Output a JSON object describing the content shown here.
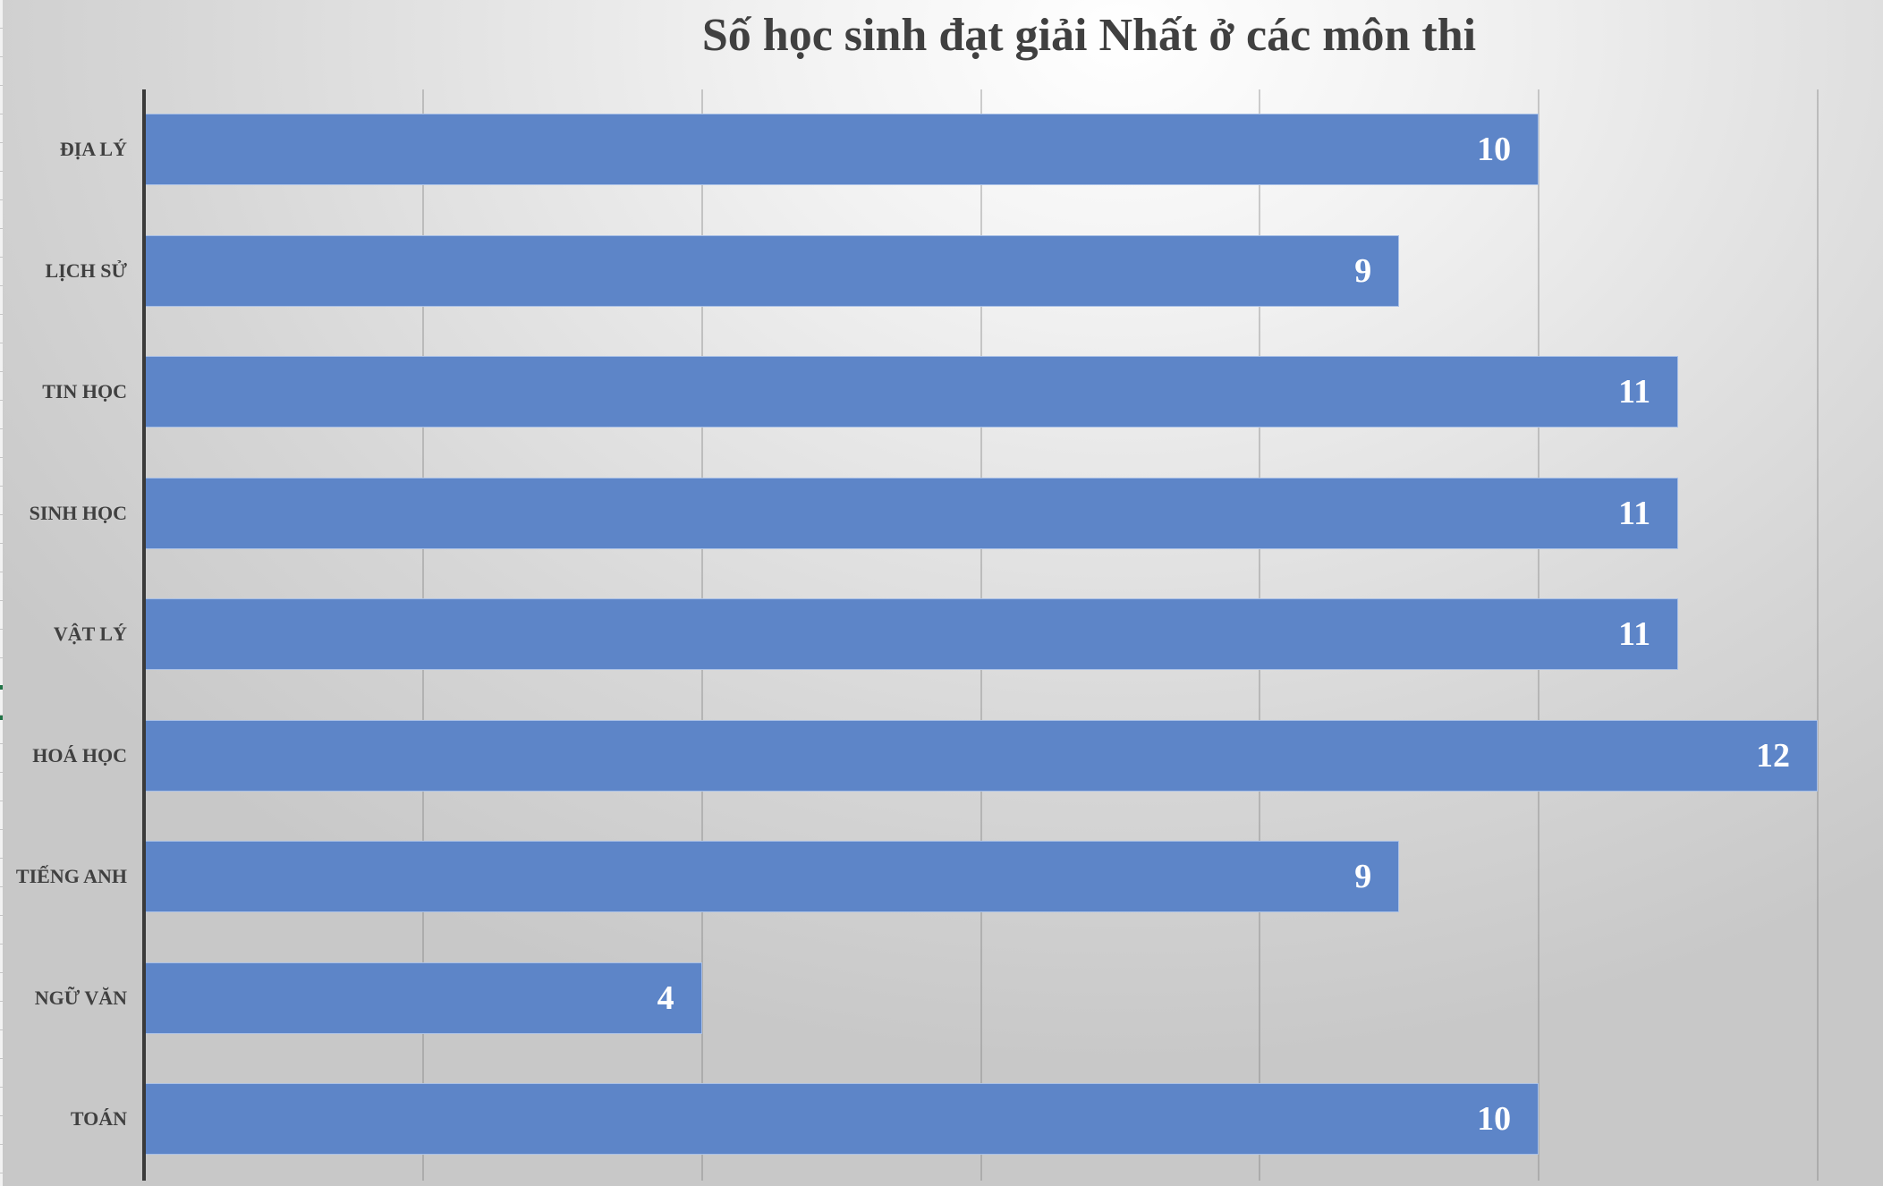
{
  "chart_data": {
    "type": "bar",
    "orientation": "horizontal",
    "title": "Số học sinh đạt giải Nhất ở các môn thi",
    "xlabel": "",
    "ylabel": "",
    "categories": [
      "ĐỊA LÝ",
      "LỊCH SỬ",
      "TIN HỌC",
      "SINH HỌC",
      "VẬT LÝ",
      "HOÁ HỌC",
      "TIẾNG ANH",
      "NGỮ VĂN",
      "TOÁN"
    ],
    "values": [
      10,
      9,
      11,
      11,
      11,
      12,
      9,
      4,
      10
    ],
    "xlim": [
      0,
      12
    ],
    "x_major_unit": 2,
    "grid": true,
    "legend": "none",
    "data_labels": true,
    "bar_color": "#5d85c8",
    "label_color": "#ffffff",
    "text_color": "#404040"
  },
  "grid_ticks": [
    0,
    2,
    4,
    6,
    8,
    10,
    12
  ]
}
